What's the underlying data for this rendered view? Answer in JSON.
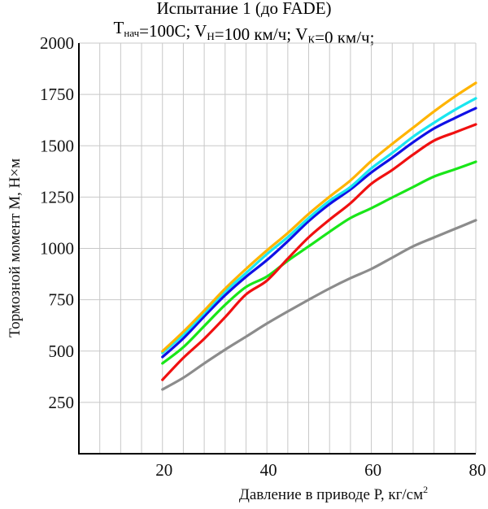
{
  "chart_data": {
    "type": "line",
    "title": "Испытание 1 (до FADE)",
    "subtitle": {
      "parts": [
        {
          "text": "T",
          "sub": "нач"
        },
        {
          "text": "=100C; V",
          "sub": "Н"
        },
        {
          "text": "=100 км/ч; V",
          "sub": "К"
        },
        {
          "text": "=0 км/ч;",
          "sub": ""
        }
      ]
    },
    "xlabel": "Давление в приводе Р, кг/см",
    "xlabel_sup": "2",
    "ylabel": "Тормозной момент М, Н×м",
    "xlim": [
      4,
      80
    ],
    "ylim": [
      0,
      2000
    ],
    "grid": true,
    "x_grid_step": 4,
    "y_grid_step": 250,
    "x_ticks": [
      20,
      40,
      60,
      80
    ],
    "x_tick_labels": [
      "20",
      "40",
      "60",
      "80"
    ],
    "y_ticks": [
      250,
      500,
      750,
      1000,
      1250,
      1500,
      1750,
      2000
    ],
    "y_tick_labels": [
      "250",
      "500",
      "750",
      "1000",
      "1250",
      "1500",
      "1750",
      "2000"
    ],
    "x": [
      20,
      24,
      28,
      32,
      36,
      40,
      44,
      48,
      52,
      56,
      60,
      64,
      68,
      72,
      76,
      80
    ],
    "series": [
      {
        "name": "gray",
        "color": "#8c8c8c",
        "values": [
          313,
          370,
          440,
          507,
          570,
          634,
          693,
          750,
          805,
          855,
          900,
          955,
          1010,
          1053,
          1095,
          1137
        ]
      },
      {
        "name": "green",
        "color": "#19e619",
        "values": [
          440,
          519,
          622,
          725,
          812,
          863,
          940,
          1010,
          1081,
          1148,
          1196,
          1248,
          1299,
          1350,
          1385,
          1422
        ]
      },
      {
        "name": "red",
        "color": "#f01010",
        "values": [
          360,
          467,
          560,
          665,
          776,
          843,
          950,
          1054,
          1140,
          1220,
          1315,
          1382,
          1457,
          1525,
          1565,
          1604
        ]
      },
      {
        "name": "blue",
        "color": "#1010e6",
        "values": [
          471,
          562,
          669,
          772,
          862,
          943,
          1035,
          1133,
          1216,
          1287,
          1370,
          1442,
          1517,
          1584,
          1635,
          1683
        ]
      },
      {
        "name": "cyan",
        "color": "#19e6f0",
        "values": [
          491,
          580,
          685,
          790,
          880,
          972,
          1055,
          1148,
          1232,
          1299,
          1390,
          1465,
          1544,
          1612,
          1675,
          1731
        ]
      },
      {
        "name": "orange",
        "color": "#ffb400",
        "values": [
          499,
          594,
          697,
          804,
          900,
          990,
          1075,
          1168,
          1252,
          1331,
          1426,
          1509,
          1588,
          1667,
          1740,
          1806
        ]
      }
    ]
  }
}
